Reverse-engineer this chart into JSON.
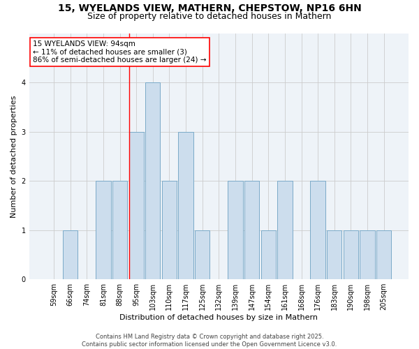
{
  "title1": "15, WYELANDS VIEW, MATHERN, CHEPSTOW, NP16 6HN",
  "title2": "Size of property relative to detached houses in Mathern",
  "xlabel": "Distribution of detached houses by size in Mathern",
  "ylabel": "Number of detached properties",
  "categories": [
    "59sqm",
    "66sqm",
    "74sqm",
    "81sqm",
    "88sqm",
    "95sqm",
    "103sqm",
    "110sqm",
    "117sqm",
    "125sqm",
    "132sqm",
    "139sqm",
    "147sqm",
    "154sqm",
    "161sqm",
    "168sqm",
    "176sqm",
    "183sqm",
    "190sqm",
    "198sqm",
    "205sqm"
  ],
  "values": [
    0,
    1,
    0,
    2,
    2,
    3,
    4,
    2,
    3,
    1,
    0,
    2,
    2,
    1,
    2,
    0,
    2,
    1,
    1,
    1,
    1
  ],
  "bar_color": "#ccdded",
  "bar_edge_color": "#7aaac8",
  "highlight_line_index": 5,
  "annotation_box_text": "15 WYELANDS VIEW: 94sqm\n← 11% of detached houses are smaller (3)\n86% of semi-detached houses are larger (24) →",
  "ylim": [
    0,
    5
  ],
  "yticks": [
    0,
    1,
    2,
    3,
    4
  ],
  "grid_color": "#cccccc",
  "background_color": "#eef3f8",
  "footer_text": "Contains HM Land Registry data © Crown copyright and database right 2025.\nContains public sector information licensed under the Open Government Licence v3.0.",
  "title_fontsize": 10,
  "subtitle_fontsize": 9,
  "axis_label_fontsize": 8,
  "tick_fontsize": 7,
  "footer_fontsize": 6
}
